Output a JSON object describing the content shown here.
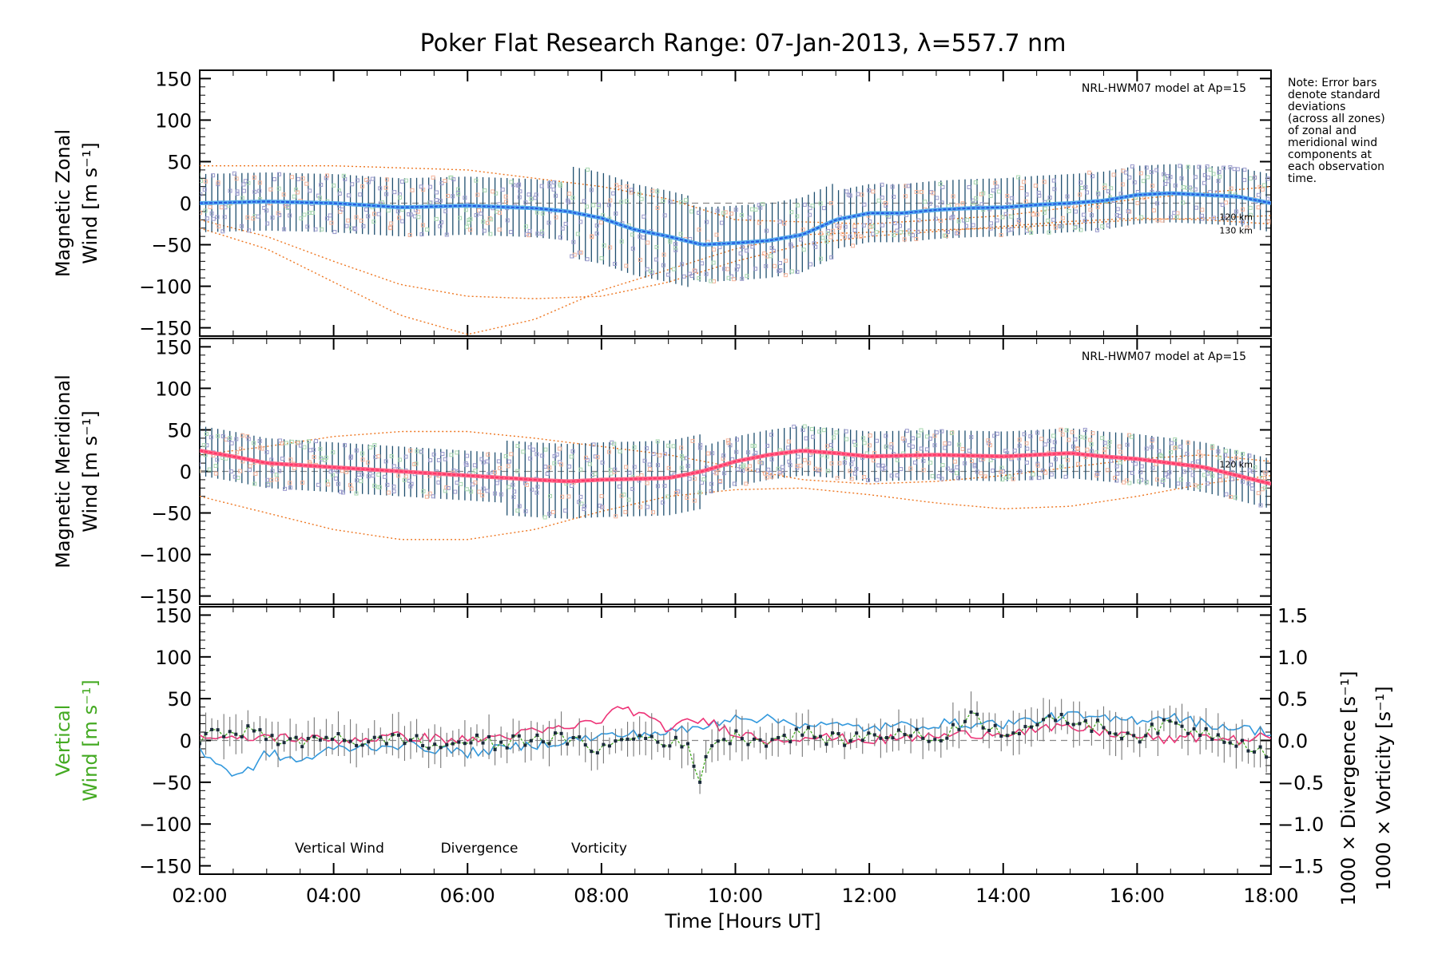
{
  "chart_data": {
    "type": "line",
    "title": "Poker Flat Research Range: 07-Jan-2013, λ=557.7 nm",
    "xlabel": "Time [Hours UT]",
    "xlim": [
      2,
      18
    ],
    "x_ticks": [
      {
        "v": 2,
        "label": "02:00"
      },
      {
        "v": 4,
        "label": "04:00"
      },
      {
        "v": 6,
        "label": "06:00"
      },
      {
        "v": 8,
        "label": "08:00"
      },
      {
        "v": 10,
        "label": "10:00"
      },
      {
        "v": 12,
        "label": "12:00"
      },
      {
        "v": 14,
        "label": "14:00"
      },
      {
        "v": 16,
        "label": "16:00"
      },
      {
        "v": 18,
        "label": "18:00"
      }
    ],
    "y_ticks": [
      "150",
      "100",
      "50",
      "0",
      "−50",
      "−100",
      "−150"
    ],
    "note": [
      "Note: Error bars",
      "denote standard",
      "deviations",
      "(across all zones)",
      "of zonal and",
      "meridional wind",
      "components at",
      "each observation",
      "time."
    ],
    "colors": {
      "zonal": "#2255dd",
      "zonal_light": "#55aaee",
      "meridional": "#ff3366",
      "model": "#ee7722",
      "scatter": "#9999cc",
      "vertical": "#44aa22",
      "divergence": "#3399dd",
      "vorticity": "#ee3377",
      "errbar": "#1f4f6f"
    },
    "panels": [
      {
        "id": "zonal",
        "ylabel_line1": "Magnetic Zonal",
        "ylabel_line2": "Wind [m s⁻¹]",
        "ylim": [
          -160,
          160
        ],
        "model_label": "NRL-HWM07 model at Ap=15",
        "model_alt_labels": [
          "120 km",
          "130 km"
        ],
        "series": [
          {
            "name": "Magnetic Zonal Wind",
            "x": [
              2.0,
              3.0,
              4.0,
              5.0,
              6.0,
              7.0,
              7.5,
              8.0,
              8.5,
              9.0,
              9.5,
              10.0,
              10.5,
              11.0,
              11.5,
              12.0,
              12.5,
              13.0,
              13.5,
              14.0,
              14.5,
              15.0,
              15.5,
              16.0,
              16.5,
              17.0,
              17.5,
              18.0
            ],
            "values": [
              0,
              2,
              0,
              -5,
              -3,
              -6,
              -10,
              -18,
              -32,
              -40,
              -50,
              -48,
              -45,
              -38,
              -20,
              -12,
              -12,
              -8,
              -6,
              -5,
              -2,
              0,
              3,
              10,
              12,
              10,
              8,
              0
            ]
          },
          {
            "name": "NRL-HWM07 model 120 km",
            "x": [
              2,
              3,
              4,
              5,
              6,
              7,
              8,
              9,
              10,
              11,
              12,
              13,
              14,
              15,
              16,
              17,
              18
            ],
            "values": [
              -30,
              -55,
              -95,
              -135,
              -158,
              -140,
              -105,
              -80,
              -55,
              -38,
              -35,
              -32,
              -30,
              -25,
              -20,
              -18,
              -15
            ]
          },
          {
            "name": "NRL-HWM07 model 130 km",
            "x": [
              2,
              3,
              4,
              5,
              6,
              7,
              8,
              9,
              10,
              11,
              12,
              13,
              14,
              15,
              16,
              17,
              18
            ],
            "values": [
              -20,
              -40,
              -70,
              -98,
              -112,
              -115,
              -112,
              -95,
              -70,
              -50,
              -40,
              -34,
              -28,
              -22,
              -18,
              -20,
              -25
            ]
          },
          {
            "name": "model upper envelope",
            "x": [
              2,
              4,
              6,
              8,
              9,
              10,
              12,
              14,
              16,
              18
            ],
            "values": [
              45,
              45,
              40,
              20,
              5,
              -20,
              -25,
              -15,
              5,
              20
            ]
          }
        ]
      },
      {
        "id": "meridional",
        "ylabel_line1": "Magnetic Meridional",
        "ylabel_line2": "Wind [m s⁻¹]",
        "ylim": [
          -160,
          160
        ],
        "model_label": "NRL-HWM07 model at Ap=15",
        "model_alt_labels": [
          "120 km"
        ],
        "series": [
          {
            "name": "Magnetic Meridional Wind",
            "x": [
              2.0,
              2.5,
              3.0,
              4.0,
              5.0,
              6.0,
              7.0,
              7.5,
              8.0,
              9.0,
              9.5,
              10.0,
              10.5,
              11.0,
              11.5,
              12.0,
              13.0,
              14.0,
              15.0,
              15.5,
              16.0,
              16.5,
              17.0,
              17.5,
              18.0
            ],
            "values": [
              25,
              18,
              10,
              5,
              0,
              -5,
              -10,
              -12,
              -10,
              -8,
              0,
              12,
              20,
              25,
              22,
              18,
              20,
              18,
              22,
              18,
              15,
              10,
              5,
              -5,
              -15
            ]
          },
          {
            "name": "NRL-HWM07 model lower",
            "x": [
              2,
              3,
              4,
              5,
              6,
              7,
              8,
              9,
              10,
              11,
              12,
              13,
              14,
              15,
              16,
              17,
              18
            ],
            "values": [
              -30,
              -50,
              -70,
              -82,
              -82,
              -70,
              -48,
              -30,
              -22,
              -20,
              -28,
              -38,
              -45,
              -42,
              -30,
              -15,
              -5
            ]
          },
          {
            "name": "NRL-HWM07 model upper",
            "x": [
              2,
              3,
              4,
              5,
              6,
              7,
              8,
              9,
              10,
              11,
              12,
              13,
              14,
              15,
              16,
              17,
              18
            ],
            "values": [
              20,
              30,
              42,
              48,
              48,
              40,
              30,
              20,
              5,
              -10,
              -15,
              -12,
              -5,
              5,
              15,
              20,
              12
            ]
          }
        ]
      },
      {
        "id": "vertical",
        "ylabel_line1": "Vertical",
        "ylabel_line2": "Wind [m s⁻¹]",
        "ylim": [
          -160,
          160
        ],
        "y2lim": [
          -1.6,
          1.6
        ],
        "y2_ticks": [
          "1.5",
          "1.0",
          "0.5",
          "0.0",
          "−0.5",
          "−1.0",
          "−1.5"
        ],
        "y2label_div": "1000 × Divergence [s⁻¹]",
        "y2label_vor": "1000 × Vorticity [s⁻¹]",
        "legend": [
          "Vertical Wind",
          "Divergence",
          "Vorticity"
        ],
        "series": [
          {
            "name": "Vertical Wind",
            "x": [
              2.0,
              2.5,
              3.0,
              3.5,
              4.0,
              4.5,
              5.0,
              5.5,
              6.0,
              6.5,
              7.0,
              7.5,
              8.0,
              8.5,
              9.0,
              9.3,
              9.45,
              9.6,
              10.0,
              10.5,
              11.0,
              11.5,
              12.0,
              12.5,
              13.0,
              13.5,
              14.0,
              14.5,
              15.0,
              15.5,
              16.0,
              16.5,
              17.0,
              17.5,
              18.0
            ],
            "values": [
              0,
              15,
              5,
              -5,
              8,
              -5,
              5,
              -8,
              0,
              -5,
              5,
              0,
              -10,
              5,
              0,
              -10,
              -50,
              -5,
              5,
              0,
              10,
              0,
              5,
              10,
              0,
              30,
              10,
              20,
              25,
              15,
              5,
              20,
              10,
              0,
              -15
            ]
          },
          {
            "name": "Divergence",
            "x": [
              2.0,
              2.3,
              2.6,
              3.0,
              3.5,
              4.0,
              5.0,
              6.0,
              7.0,
              8.0,
              9.0,
              9.5,
              10.0,
              10.5,
              11.0,
              12.0,
              13.0,
              14.0,
              15.0,
              15.5,
              16.0,
              16.5,
              17.0,
              17.5,
              18.0
            ],
            "values": [
              -0.1,
              -0.3,
              -0.45,
              -0.15,
              -0.25,
              -0.1,
              -0.05,
              -0.15,
              -0.05,
              0.05,
              0.1,
              0.15,
              0.3,
              0.25,
              0.2,
              0.15,
              0.2,
              0.2,
              0.3,
              0.25,
              0.25,
              0.3,
              0.2,
              0.15,
              0.1
            ]
          },
          {
            "name": "Vorticity",
            "x": [
              2.0,
              2.5,
              3.0,
              4.0,
              5.0,
              6.0,
              7.0,
              7.5,
              8.0,
              8.3,
              8.5,
              8.8,
              9.0,
              9.5,
              10.0,
              10.5,
              11.0,
              12.0,
              13.0,
              14.0,
              15.0,
              15.5,
              16.0,
              16.5,
              17.0,
              17.5,
              18.0
            ],
            "values": [
              0.05,
              0.0,
              0.05,
              0.0,
              0.05,
              0.0,
              0.1,
              0.15,
              0.25,
              0.4,
              0.35,
              0.2,
              0.15,
              0.25,
              0.1,
              0.0,
              0.05,
              0.0,
              0.05,
              0.1,
              0.15,
              0.1,
              0.05,
              0.0,
              0.05,
              0.0,
              0.05
            ]
          }
        ]
      }
    ]
  }
}
